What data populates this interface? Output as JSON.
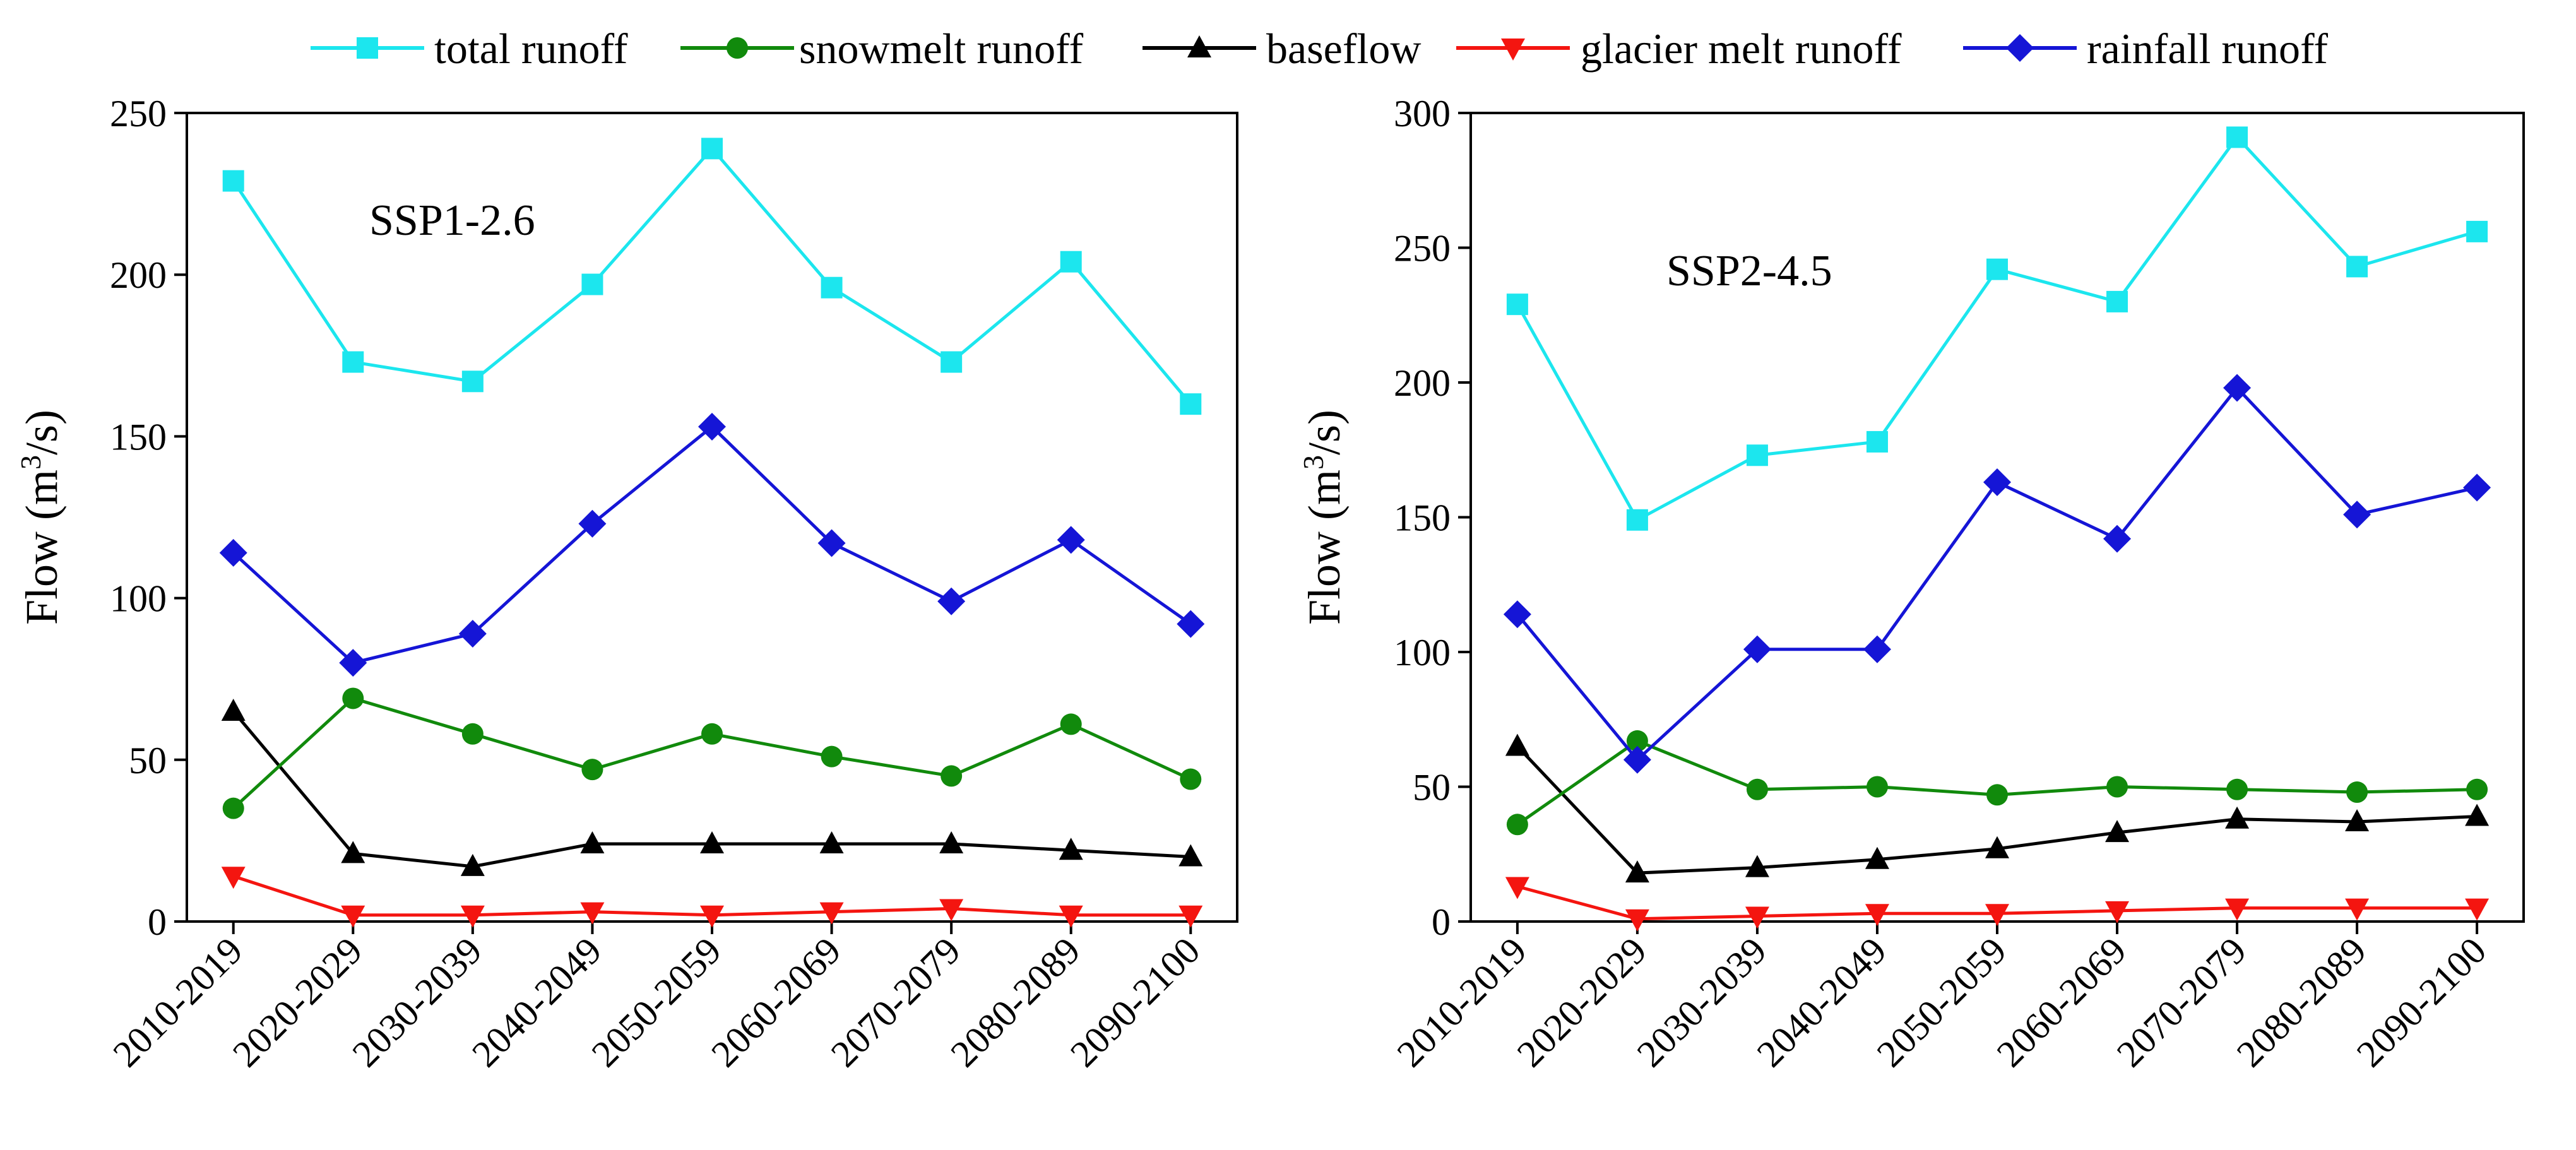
{
  "legend": {
    "entries": [
      {
        "label": "total runoff",
        "color": "#1CE6EE",
        "marker": "square"
      },
      {
        "label": "snowmelt runoff",
        "color": "#118A0C",
        "marker": "circle"
      },
      {
        "label": "baseflow",
        "color": "#000000",
        "marker": "triangle-up"
      },
      {
        "label": "glacier melt runoff",
        "color": "#F41510",
        "marker": "triangle-down"
      },
      {
        "label": "rainfall runoff",
        "color": "#1515D6",
        "marker": "diamond"
      }
    ]
  },
  "chart_data": [
    {
      "type": "line",
      "annotation": "SSP1-2.6",
      "ylabel": "Flow (m3/s)",
      "ylim": [
        0,
        250
      ],
      "yticks": [
        0,
        50,
        100,
        150,
        200,
        250
      ],
      "categories": [
        "2010-2019",
        "2020-2029",
        "2030-2039",
        "2040-2049",
        "2050-2059",
        "2060-2069",
        "2070-2079",
        "2080-2089",
        "2090-2100"
      ],
      "series": [
        {
          "name": "total runoff",
          "values": [
            229,
            173,
            167,
            197,
            239,
            196,
            173,
            204,
            160
          ]
        },
        {
          "name": "snowmelt runoff",
          "values": [
            35,
            69,
            58,
            47,
            58,
            51,
            45,
            61,
            44
          ]
        },
        {
          "name": "baseflow",
          "values": [
            65,
            21,
            17,
            24,
            24,
            24,
            24,
            22,
            20
          ]
        },
        {
          "name": "glacier melt runoff",
          "values": [
            14,
            2,
            2,
            3,
            2,
            3,
            4,
            2,
            2
          ]
        },
        {
          "name": "rainfall runoff",
          "values": [
            114,
            80,
            89,
            123,
            153,
            117,
            99,
            118,
            92
          ]
        }
      ]
    },
    {
      "type": "line",
      "annotation": "SSP2-4.5",
      "ylabel": "Flow (m3/s)",
      "ylim": [
        0,
        300
      ],
      "yticks": [
        0,
        50,
        100,
        150,
        200,
        250,
        300
      ],
      "categories": [
        "2010-2019",
        "2020-2029",
        "2030-2039",
        "2040-2049",
        "2050-2059",
        "2060-2069",
        "2070-2079",
        "2080-2089",
        "2090-2100"
      ],
      "series": [
        {
          "name": "total runoff",
          "values": [
            229,
            149,
            173,
            178,
            242,
            230,
            291,
            243,
            256
          ]
        },
        {
          "name": "snowmelt runoff",
          "values": [
            36,
            67,
            49,
            50,
            47,
            50,
            49,
            48,
            49
          ]
        },
        {
          "name": "baseflow",
          "values": [
            65,
            18,
            20,
            23,
            27,
            33,
            38,
            37,
            39
          ]
        },
        {
          "name": "glacier melt runoff",
          "values": [
            13,
            1,
            2,
            3,
            3,
            4,
            5,
            5,
            5
          ]
        },
        {
          "name": "rainfall runoff",
          "values": [
            114,
            60,
            101,
            101,
            163,
            142,
            198,
            151,
            161
          ]
        }
      ]
    }
  ]
}
